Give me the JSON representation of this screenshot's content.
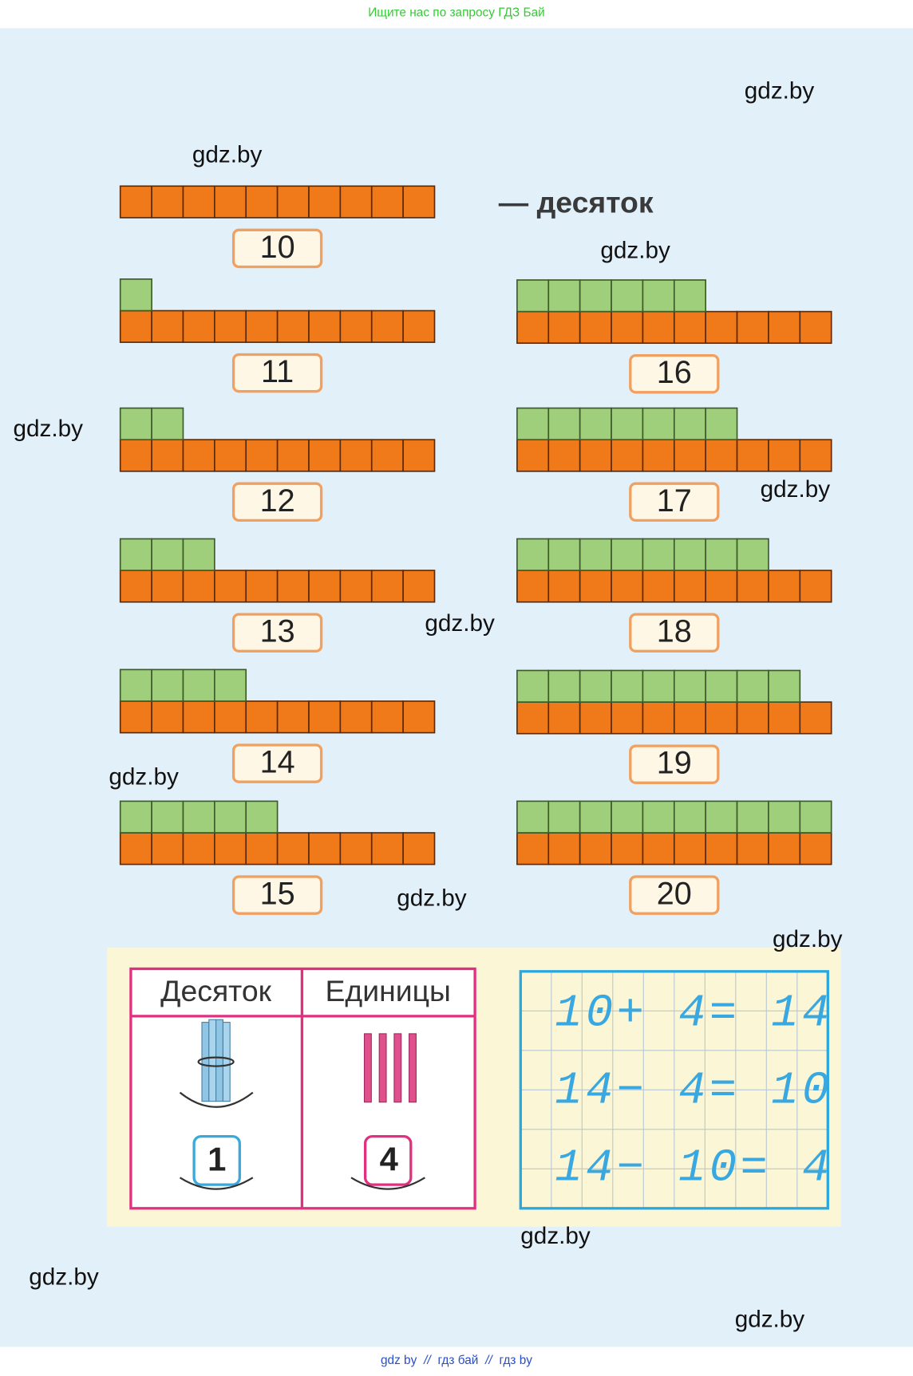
{
  "header": {
    "text": "Ищите нас по запросу ГДЗ Бай"
  },
  "ten_label": "— десяток",
  "left_numbers": [
    10,
    11,
    12,
    13,
    14,
    15
  ],
  "right_numbers": [
    16,
    17,
    18,
    19,
    20
  ],
  "table": {
    "headers": [
      "Десяток",
      "Единицы"
    ],
    "values": [
      1,
      4
    ]
  },
  "equations": [
    "10+ 4= 14",
    "14− 4= 10",
    "14− 10= 4"
  ],
  "watermarks": [
    "gdz.by",
    "gdz.by",
    "gdz.by",
    "gdz.by",
    "gdz.by",
    "gdz.by",
    "gdz.by",
    "gdz.by",
    "gdz.by",
    "gdz.by",
    "gdz.by",
    "gdz.by"
  ],
  "footer": {
    "links": [
      "gdz by",
      "гдз бай",
      "гдз by"
    ],
    "separator": "//"
  }
}
